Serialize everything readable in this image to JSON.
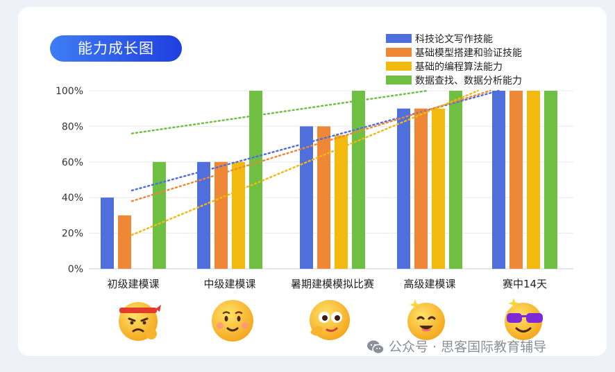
{
  "colors": {
    "blue": "#4f6fdc",
    "orange": "#ee8836",
    "yellow": "#f2b90e",
    "green": "#6fbf43"
  },
  "chart_data": {
    "type": "bar",
    "title": "能力成长图",
    "categories": [
      "初级建模课",
      "中级建模课",
      "暑期建模模拟比赛",
      "高级建模课",
      "赛中14天"
    ],
    "series": [
      {
        "name": "科技论文写作技能",
        "color": "#4f6fdc",
        "values": [
          40,
          60,
          80,
          90,
          100
        ]
      },
      {
        "name": "基础模型搭建和验证技能",
        "color": "#ee8836",
        "values": [
          30,
          60,
          80,
          90,
          100
        ]
      },
      {
        "name": "基础的编程算法能力",
        "color": "#f2b90e",
        "values": [
          0,
          60,
          75,
          90,
          100
        ]
      },
      {
        "name": "数据查找、数据分析能力",
        "color": "#6fbf43",
        "values": [
          60,
          100,
          100,
          100,
          100
        ]
      }
    ],
    "yticks": [
      "0%",
      "20%",
      "40%",
      "60%",
      "80%",
      "100%"
    ],
    "ylim": [
      0,
      100
    ],
    "trendlines": "dotted linear per series",
    "legend": "top-right",
    "grid": true
  },
  "emojis": [
    {
      "icon": "headband-determined-face-icon"
    },
    {
      "icon": "smiling-face-icon"
    },
    {
      "icon": "thinking-face-icon"
    },
    {
      "icon": "sparkle-laughing-face-icon"
    },
    {
      "icon": "sunglasses-face-icon"
    }
  ],
  "watermark": {
    "icon": "wechat-icon",
    "text": "公众号 · 思客国际教育辅导"
  }
}
